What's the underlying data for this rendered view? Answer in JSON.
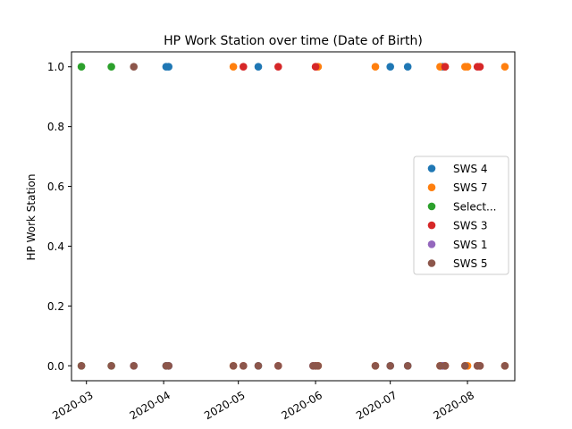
{
  "chart_data": {
    "type": "scatter",
    "title": "HP Work Station over time (Date of Birth)",
    "xlabel": "",
    "ylabel": "HP Work Station",
    "xlim": [
      "2020-02-24",
      "2020-08-20"
    ],
    "ylim": [
      -0.05,
      1.05
    ],
    "x_ticks": [
      {
        "date": "2020-03-01",
        "label": "2020-03"
      },
      {
        "date": "2020-04-01",
        "label": "2020-04"
      },
      {
        "date": "2020-05-01",
        "label": "2020-05"
      },
      {
        "date": "2020-06-01",
        "label": "2020-06"
      },
      {
        "date": "2020-07-01",
        "label": "2020-07"
      },
      {
        "date": "2020-08-01",
        "label": "2020-08"
      }
    ],
    "y_ticks": [
      {
        "value": 0.0,
        "label": "0.0"
      },
      {
        "value": 0.2,
        "label": "0.2"
      },
      {
        "value": 0.4,
        "label": "0.4"
      },
      {
        "value": 0.6,
        "label": "0.6"
      },
      {
        "value": 0.8,
        "label": "0.8"
      },
      {
        "value": 1.0,
        "label": "1.0"
      }
    ],
    "grid": false,
    "legend_position": "center-right",
    "series": [
      {
        "name": "SWS 4",
        "color": "#1f77b4",
        "points": [
          [
            "2020-04-02",
            1
          ],
          [
            "2020-04-03",
            1
          ],
          [
            "2020-05-09",
            1
          ],
          [
            "2020-07-01",
            1
          ],
          [
            "2020-07-08",
            1
          ],
          [
            "2020-07-22",
            1
          ],
          [
            "2020-04-02",
            0
          ],
          [
            "2020-04-03",
            0
          ],
          [
            "2020-05-09",
            0
          ],
          [
            "2020-07-01",
            0
          ],
          [
            "2020-07-08",
            0
          ],
          [
            "2020-07-22",
            0
          ]
        ]
      },
      {
        "name": "SWS 7",
        "color": "#ff7f0e",
        "points": [
          [
            "2020-04-29",
            1
          ],
          [
            "2020-06-02",
            1
          ],
          [
            "2020-06-25",
            1
          ],
          [
            "2020-07-21",
            1
          ],
          [
            "2020-07-23",
            1
          ],
          [
            "2020-07-31",
            1
          ],
          [
            "2020-08-01",
            1
          ],
          [
            "2020-08-16",
            1
          ],
          [
            "2020-04-29",
            0
          ],
          [
            "2020-06-02",
            0
          ],
          [
            "2020-06-25",
            0
          ],
          [
            "2020-07-21",
            0
          ],
          [
            "2020-07-23",
            0
          ],
          [
            "2020-07-31",
            0
          ],
          [
            "2020-08-01",
            0
          ],
          [
            "2020-08-16",
            0
          ]
        ]
      },
      {
        "name": "Select...",
        "color": "#2ca02c",
        "points": [
          [
            "2020-02-28",
            1
          ],
          [
            "2020-03-11",
            1
          ],
          [
            "2020-02-28",
            0
          ],
          [
            "2020-03-11",
            0
          ]
        ]
      },
      {
        "name": "SWS 3",
        "color": "#d62728",
        "points": [
          [
            "2020-05-03",
            1
          ],
          [
            "2020-05-17",
            1
          ],
          [
            "2020-06-01",
            1
          ],
          [
            "2020-07-23",
            1
          ],
          [
            "2020-08-05",
            1
          ],
          [
            "2020-08-06",
            1
          ],
          [
            "2020-05-03",
            0
          ],
          [
            "2020-05-17",
            0
          ],
          [
            "2020-06-01",
            0
          ],
          [
            "2020-07-23",
            0
          ],
          [
            "2020-08-05",
            0
          ],
          [
            "2020-08-06",
            0
          ]
        ]
      },
      {
        "name": "SWS 1",
        "color": "#9467bd",
        "points": [
          [
            "2020-03-20",
            0
          ],
          [
            "2020-04-03",
            0
          ],
          [
            "2020-05-31",
            0
          ],
          [
            "2020-07-22",
            0
          ]
        ]
      },
      {
        "name": "SWS 5",
        "color": "#8c564b",
        "points": [
          [
            "2020-03-20",
            1
          ],
          [
            "2020-02-28",
            0
          ],
          [
            "2020-03-11",
            0
          ],
          [
            "2020-03-20",
            0
          ],
          [
            "2020-04-02",
            0
          ],
          [
            "2020-04-03",
            0
          ],
          [
            "2020-04-29",
            0
          ],
          [
            "2020-05-03",
            0
          ],
          [
            "2020-05-09",
            0
          ],
          [
            "2020-05-17",
            0
          ],
          [
            "2020-05-31",
            0
          ],
          [
            "2020-06-01",
            0
          ],
          [
            "2020-06-02",
            0
          ],
          [
            "2020-06-25",
            0
          ],
          [
            "2020-07-01",
            0
          ],
          [
            "2020-07-08",
            0
          ],
          [
            "2020-07-21",
            0
          ],
          [
            "2020-07-23",
            0
          ],
          [
            "2020-07-31",
            0
          ],
          [
            "2020-08-05",
            0
          ],
          [
            "2020-08-06",
            0
          ],
          [
            "2020-08-16",
            0
          ]
        ]
      }
    ]
  }
}
